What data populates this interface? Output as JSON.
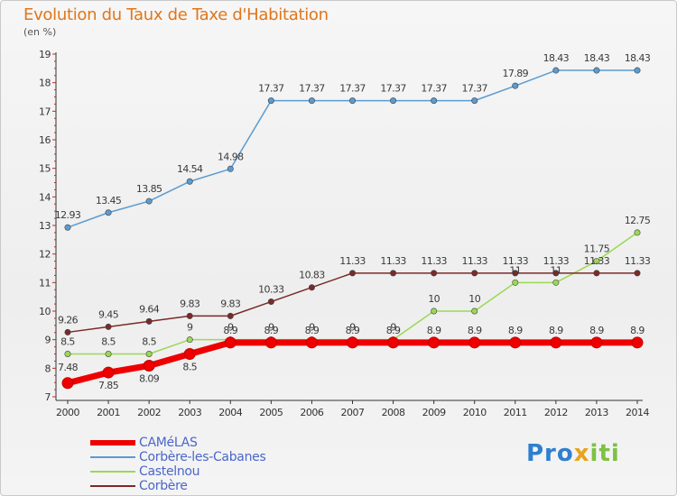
{
  "header": {
    "title": "Evolution du Taux de Taxe d'Habitation",
    "unit": "(en %)"
  },
  "logo": {
    "parts": [
      "Pro",
      "x",
      "iti"
    ]
  },
  "colors": {
    "CAMeLAS": "#ee0000",
    "Corbere-les-Cabanes": "#5b9bd0",
    "Castelnou": "#9bd855",
    "Corbere": "#7a2a2a"
  },
  "chart_data": {
    "type": "line",
    "x": [
      2000,
      2001,
      2002,
      2003,
      2004,
      2005,
      2006,
      2007,
      2008,
      2009,
      2010,
      2011,
      2012,
      2013,
      2014
    ],
    "ylim": [
      7,
      19
    ],
    "yticks": [
      7,
      8,
      9,
      10,
      11,
      12,
      13,
      14,
      15,
      16,
      17,
      18,
      19
    ],
    "grid": false,
    "legend": "bottom-left",
    "series": [
      {
        "name": "CAMéLAS",
        "color": "#ee0000",
        "values": [
          7.48,
          7.85,
          8.09,
          8.5,
          8.9,
          8.9,
          8.9,
          8.9,
          8.9,
          8.9,
          8.9,
          8.9,
          8.9,
          8.9,
          8.9
        ],
        "labels": [
          "7.48",
          "7.85",
          "8.09",
          "8.5",
          "8.9",
          "8.9",
          "8.9",
          "8.9",
          "8.9",
          "8.9",
          "8.9",
          "8.9",
          "8.9",
          "8.9",
          "8.9"
        ]
      },
      {
        "name": "Corbère-les-Cabanes",
        "color": "#5b9bd0",
        "values": [
          12.93,
          13.45,
          13.85,
          14.54,
          14.98,
          17.37,
          17.37,
          17.37,
          17.37,
          17.37,
          17.37,
          17.89,
          18.43,
          18.43,
          18.43
        ],
        "labels": [
          "12.93",
          "13.45",
          "13.85",
          "14.54",
          "14.98",
          "17.37",
          "17.37",
          "17.37",
          "17.37",
          "17.37",
          "17.37",
          "17.89",
          "18.43",
          "18.43",
          "18.43"
        ]
      },
      {
        "name": "Castelnou",
        "color": "#9bd855",
        "values": [
          8.5,
          8.5,
          8.5,
          9,
          9,
          9,
          9,
          9,
          9,
          10,
          10,
          11,
          11,
          11.75,
          12.75
        ],
        "labels": [
          "8.5",
          "8.5",
          "8.5",
          "9",
          "9",
          "9",
          "9",
          "9",
          "9",
          "10",
          "10",
          "11",
          "11",
          "11.75",
          "12.75"
        ]
      },
      {
        "name": "Corbère",
        "color": "#7a2a2a",
        "values": [
          9.26,
          9.45,
          9.64,
          9.83,
          9.83,
          10.33,
          10.83,
          11.33,
          11.33,
          11.33,
          11.33,
          11.33,
          11.33,
          11.33,
          11.33
        ],
        "labels": [
          "9.26",
          "9.45",
          "9.64",
          "9.83",
          "9.83",
          "10.33",
          "10.83",
          "11.33",
          "11.33",
          "11.33",
          "11.33",
          "11.33",
          "11.33",
          "11.33",
          "11.33"
        ]
      }
    ]
  }
}
